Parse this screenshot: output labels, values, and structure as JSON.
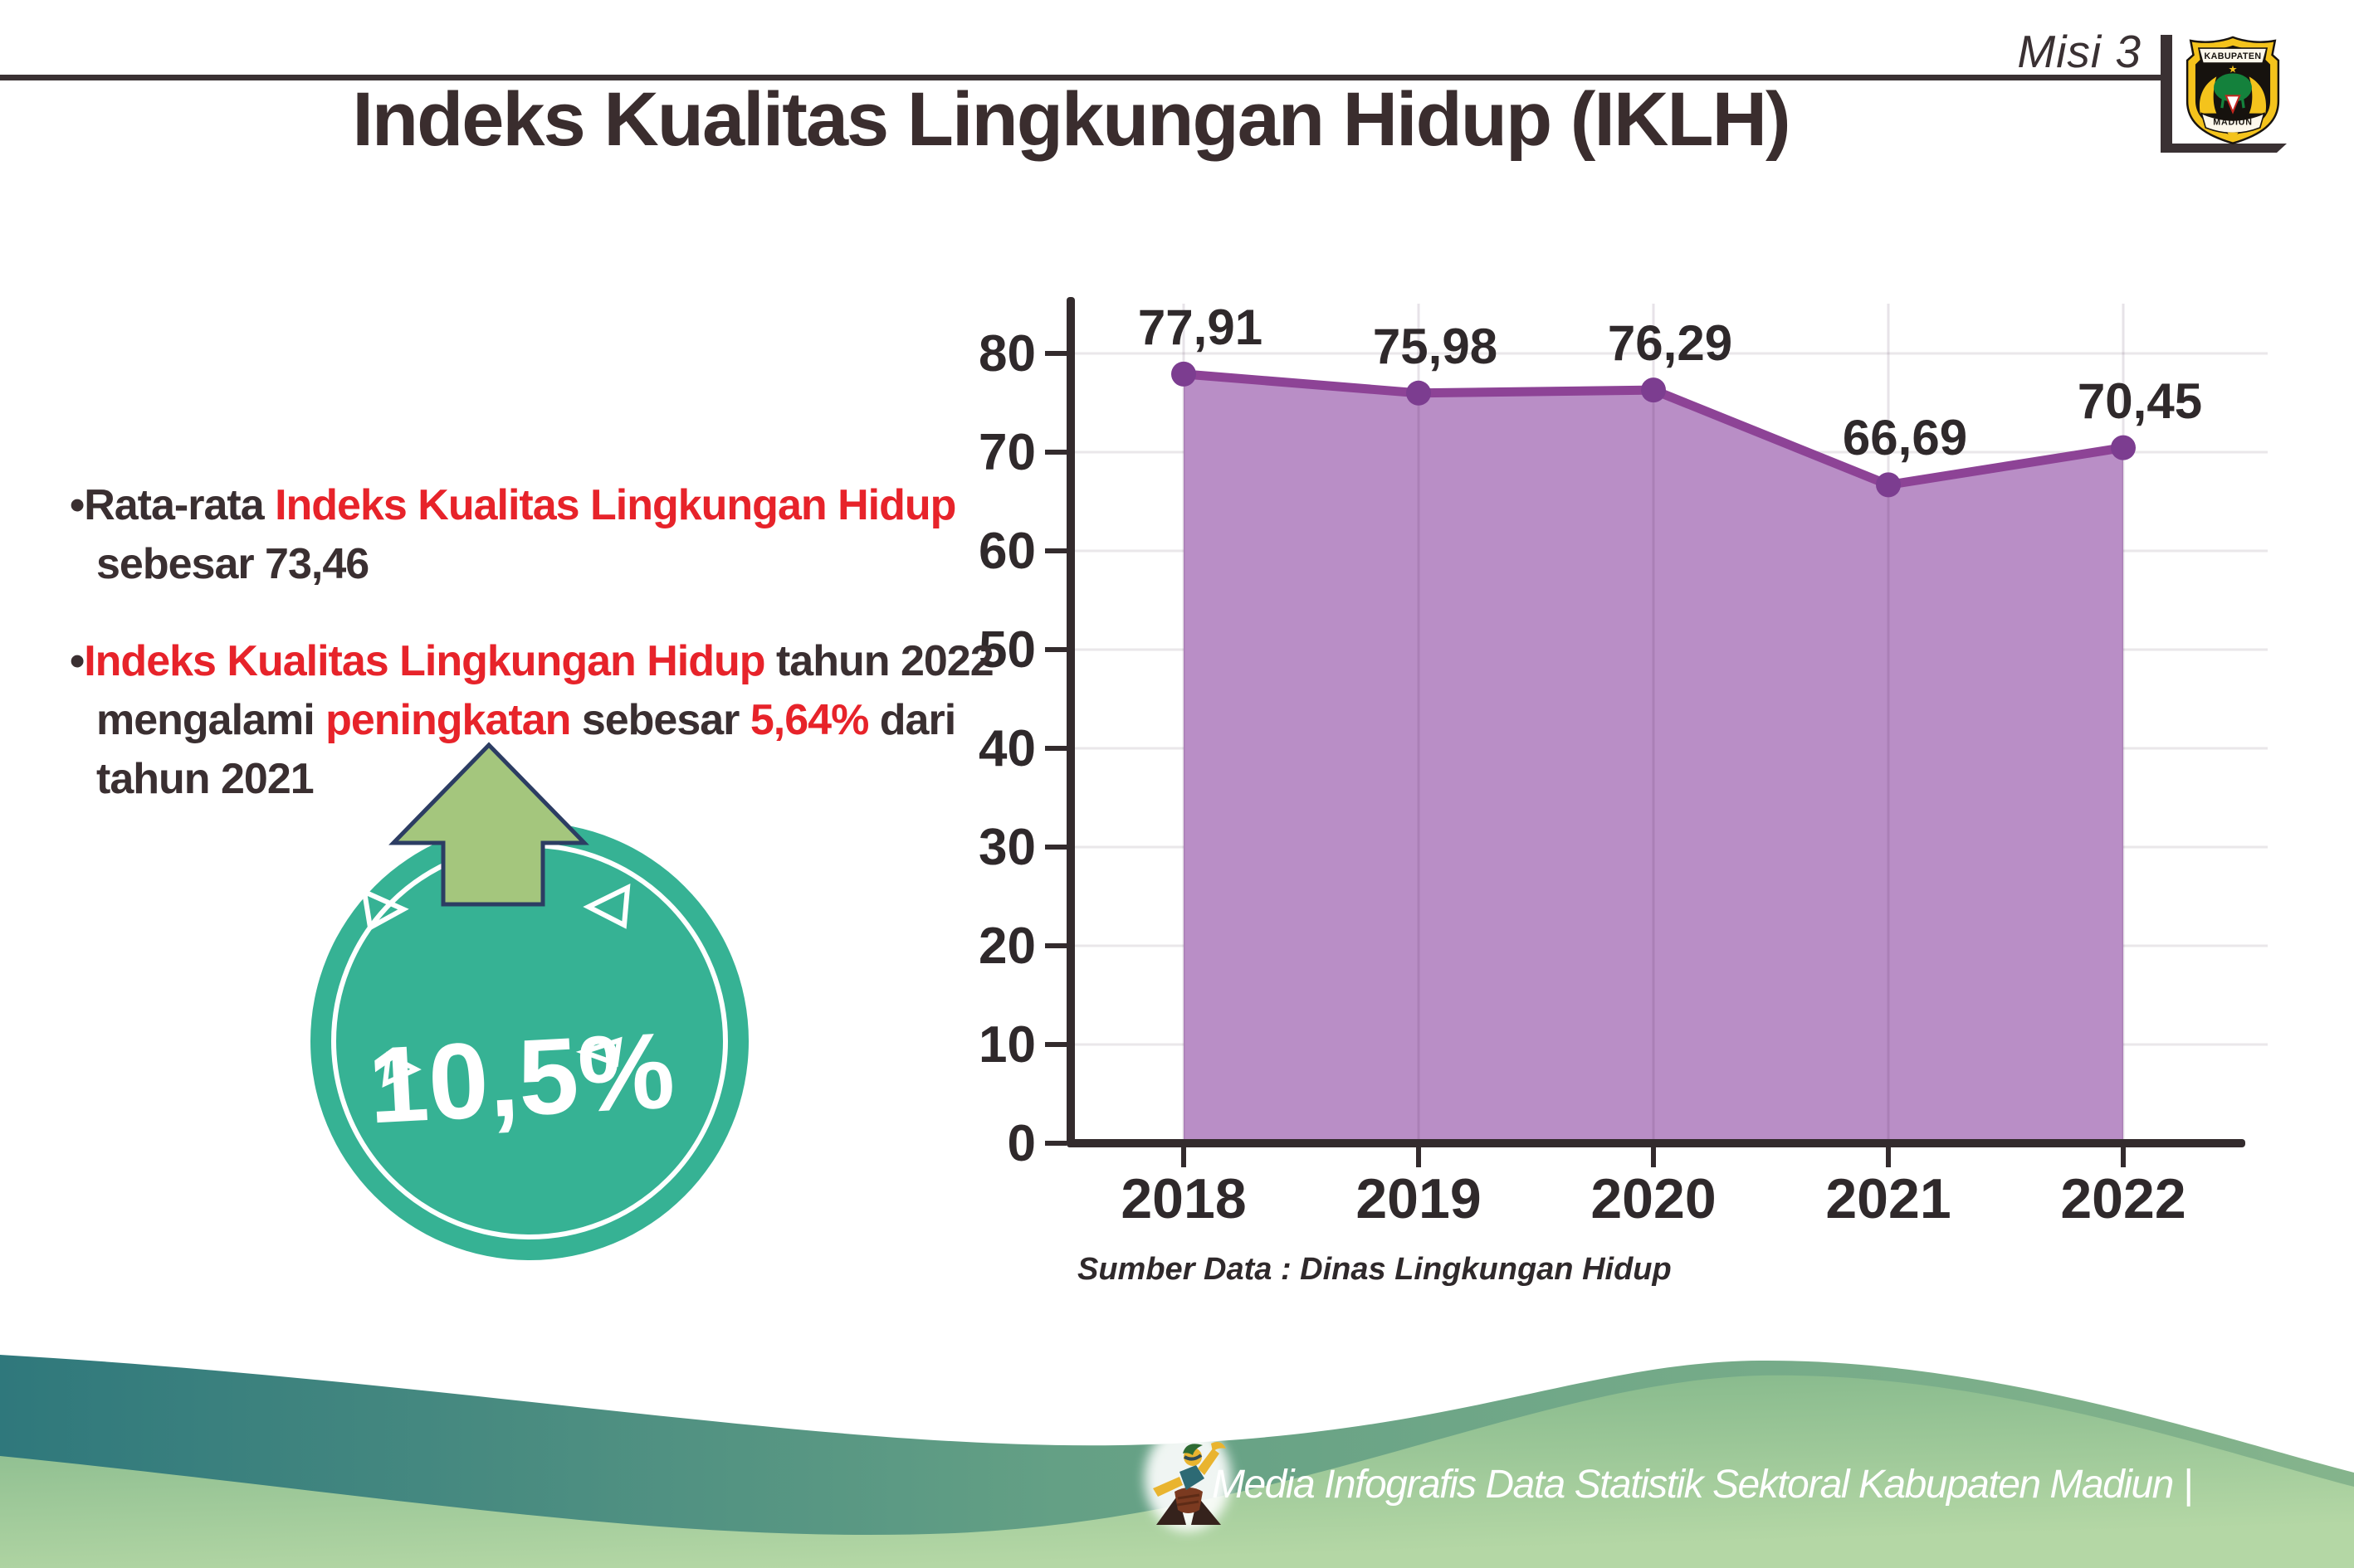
{
  "header": {
    "misi_label": "Misi 3",
    "logo": {
      "top_text": "KABUPATEN",
      "bottom_text": "MADIUN"
    }
  },
  "title": "Indeks Kualitas Lingkungan Hidup (IKLH)",
  "notes": [
    {
      "lines": [
        [
          {
            "t": "•Rata-rata ",
            "c": "dark"
          },
          {
            "t": "Indeks Kualitas Lingkungan Hidup",
            "c": "red"
          }
        ],
        [
          {
            "t": "sebesar 73,46",
            "c": "dark"
          }
        ]
      ]
    },
    {
      "lines": [
        [
          {
            "t": "•",
            "c": "dark"
          },
          {
            "t": "Indeks Kualitas Lingkungan Hidup",
            "c": "red"
          },
          {
            "t": " tahun 2022",
            "c": "dark"
          }
        ],
        [
          {
            "t": "mengalami ",
            "c": "dark"
          },
          {
            "t": "peningkatan",
            "c": "red"
          },
          {
            "t": " sebesar ",
            "c": "dark"
          },
          {
            "t": "5,64%",
            "c": "red"
          },
          {
            "t": " dari",
            "c": "dark"
          }
        ],
        [
          {
            "t": "tahun 2021",
            "c": "dark"
          }
        ]
      ]
    }
  ],
  "badge": {
    "value": "10,5%",
    "circle_color": "#36b294",
    "arrow_color": "#a4c67d",
    "arrow_outline": "#2c3d63"
  },
  "chart_data": {
    "type": "area",
    "title": "",
    "categories": [
      "2018",
      "2019",
      "2020",
      "2021",
      "2022"
    ],
    "values": [
      77.91,
      75.98,
      76.29,
      66.69,
      70.45
    ],
    "point_labels": [
      "77,91",
      "75,98",
      "76,29",
      "66,69",
      "70,45"
    ],
    "yticks": [
      0,
      10,
      20,
      30,
      40,
      50,
      60,
      70,
      80
    ],
    "ylim": [
      0,
      85
    ],
    "xlabel": "",
    "ylabel": "",
    "grid": true,
    "legend_position": "none",
    "source_caption": "Sumber Data : Dinas Lingkungan Hidup",
    "colors": {
      "line": "#8d4396",
      "fill": "#b98ec6",
      "dot": "#7c3d90",
      "axis": "#332b2d",
      "grid_h": "#eae7ea",
      "grid_v": "rgba(70,40,80,0.13)",
      "text": "#2f292b"
    }
  },
  "footer": {
    "caption": "Media Infografis Data Statistik Sektoral Kabupaten Madiun |"
  }
}
